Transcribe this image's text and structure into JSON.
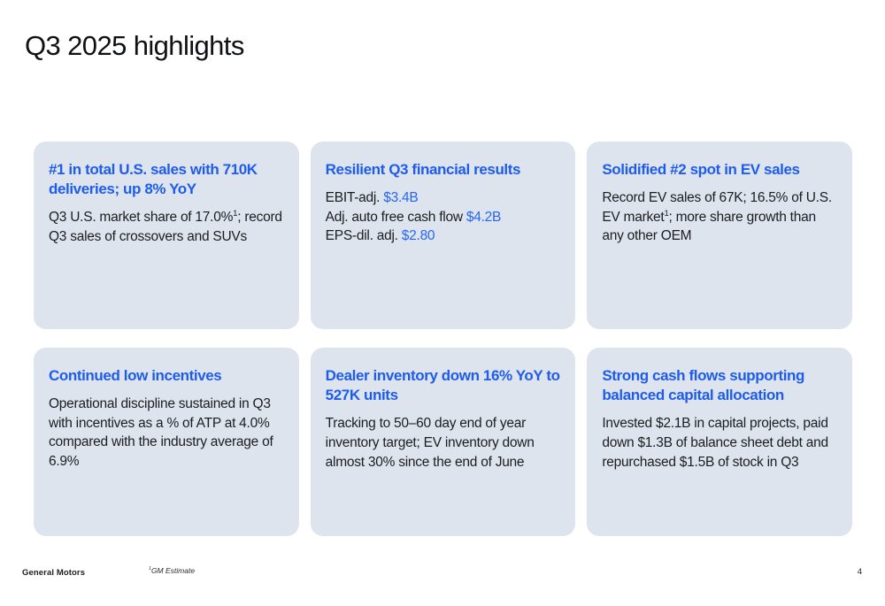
{
  "slide": {
    "title": "Q3 2025 highlights",
    "page_number": "4",
    "footer_brand": "General Motors",
    "footnote": {
      "sup": "1",
      "text": "GM Estimate"
    }
  },
  "colors": {
    "card_background": "#dee4ed",
    "heading_blue": "#1d5cec",
    "value_blue": "#2667f2",
    "text_dark": "#1b1d20"
  },
  "cards": [
    {
      "id": "us-sales",
      "heading": "#1 in total U.S. sales with 710K deliveries; up 8% YoY",
      "body": [
        [
          {
            "t": "Q3 U.S. market share of 17.0%"
          },
          {
            "t": "1",
            "s": "sup"
          },
          {
            "t": "; record Q3 sales of crossovers and SUVs"
          }
        ]
      ]
    },
    {
      "id": "financial-results",
      "heading": "Resilient Q3 financial results",
      "body": [
        [
          {
            "t": "EBIT-adj. "
          },
          {
            "t": "$3.4B",
            "s": "blue"
          }
        ],
        [
          {
            "t": "Adj. auto free cash flow "
          },
          {
            "t": "$4.2B",
            "s": "blue"
          }
        ],
        [
          {
            "t": "EPS-dil. adj. "
          },
          {
            "t": "$2.80",
            "s": "blue"
          }
        ]
      ]
    },
    {
      "id": "ev-sales",
      "heading": "Solidified #2 spot in EV sales",
      "body": [
        [
          {
            "t": "Record EV sales of 67K; 16.5% of U.S. EV market"
          },
          {
            "t": "1",
            "s": "sup"
          },
          {
            "t": "; more share growth than any other OEM"
          }
        ]
      ]
    },
    {
      "id": "low-incentives",
      "heading": "Continued low incentives",
      "body": [
        [
          {
            "t": "Operational discipline sustained in Q3 with incentives as a % of ATP at 4.0% compared with the industry average of 6.9%"
          }
        ]
      ]
    },
    {
      "id": "dealer-inventory",
      "heading": "Dealer inventory down 16% YoY to 527K units",
      "body": [
        [
          {
            "t": "Tracking to 50–60 day end of year inventory target; EV inventory down almost 30% since the end of June"
          }
        ]
      ]
    },
    {
      "id": "cash-flows",
      "heading": "Strong cash flows supporting balanced capital allocation",
      "body": [
        [
          {
            "t": "Invested $2.1B in capital projects, paid down $1.3B of balance sheet debt and repurchased $1.5B of stock in Q3"
          }
        ]
      ]
    }
  ]
}
